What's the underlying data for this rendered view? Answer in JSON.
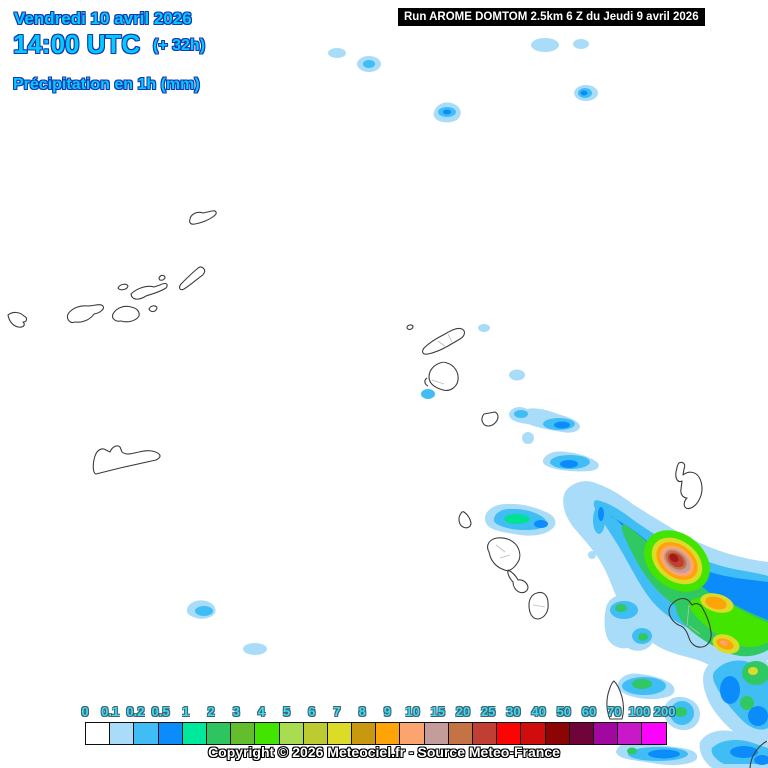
{
  "header": {
    "date_line": "Vendredi 10 avril 2026",
    "time_line": "14:00 UTC",
    "offset_label": "(+ 32h)",
    "param_line": "Précipitation en 1h (mm)",
    "run_line": "Run AROME DOMTOM 2.5km 6 Z du Jeudi 9 avril 2026",
    "accent_color": "#00CCFF",
    "accent_outline_color": "#1C35B0",
    "run_bg": "#000000",
    "run_fg": "#FFFFFF"
  },
  "map": {
    "background": "#FFFFFF",
    "coastline_color": "#3C3C3C",
    "inner_border_color": "#BBBBBB",
    "palette": {
      "lb": "#A9DCF9",
      "cy": "#41BDF5",
      "bl": "#0B8CFA",
      "tg": "#00E292",
      "gr": "#30C862",
      "g2": "#42E400",
      "yl": "#DCDC28",
      "or": "#FFA408",
      "sa": "#FCA470",
      "ro": "#C49C9C",
      "si": "#C47444",
      "br": "#C03E34",
      "rd": "#A01C14"
    }
  },
  "legend": {
    "title": "Précipitation en 1h (mm)",
    "labels": [
      "0",
      "0.1",
      "0.2",
      "0.5",
      "1",
      "2",
      "3",
      "4",
      "5",
      "6",
      "7",
      "8",
      "9",
      "10",
      "15",
      "20",
      "25",
      "30",
      "40",
      "50",
      "60",
      "70",
      "100",
      "200"
    ],
    "colors": [
      "#FFFFFF",
      "#A9DCF9",
      "#41BDF5",
      "#0B8CFA",
      "#00E89C",
      "#2EC460",
      "#63BE2E",
      "#42E400",
      "#A9DC50",
      "#BCCC30",
      "#DCDC28",
      "#C89810",
      "#FFA408",
      "#FCA470",
      "#C49C9C",
      "#C47444",
      "#C03E34",
      "#FC0404",
      "#D00C0C",
      "#8C0404",
      "#6E0438",
      "#A008A0",
      "#C818C8",
      "#FC04FC"
    ],
    "label_color": "#3FD9F2",
    "label_outline_color": "#3E6472"
  },
  "footer": {
    "copyright": "Copyright © 2026 Meteociel.fr - Source Meteo-France"
  }
}
